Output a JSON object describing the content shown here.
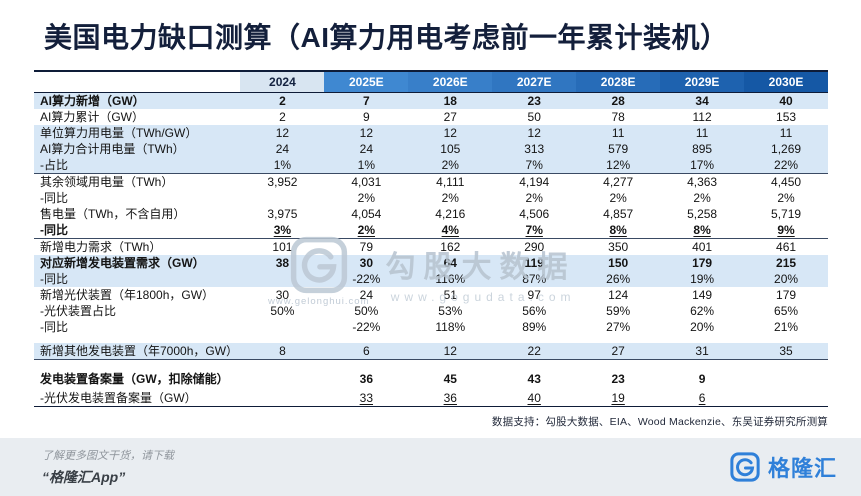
{
  "chart_data": {
    "type": "table",
    "title": "美国电力缺口测算（AI算力用电考虑前一年累计装机）",
    "columns": [
      "2024",
      "2025E",
      "2026E",
      "2027E",
      "2028E",
      "2029E",
      "2030E"
    ],
    "rows": [
      {
        "label": "AI算力新增（GW）",
        "values": [
          "2",
          "7",
          "18",
          "23",
          "28",
          "34",
          "40"
        ],
        "bold": true,
        "highlight": true
      },
      {
        "label": "AI算力累计（GW）",
        "values": [
          "2",
          "9",
          "27",
          "50",
          "78",
          "112",
          "153"
        ]
      },
      {
        "label": "单位算力用电量（TWh/GW）",
        "values": [
          "12",
          "12",
          "12",
          "12",
          "11",
          "11",
          "11"
        ],
        "highlight": true
      },
      {
        "label": "AI算力合计用电量（TWh）",
        "values": [
          "24",
          "24",
          "105",
          "313",
          "579",
          "895",
          "1,269"
        ],
        "highlight": true
      },
      {
        "label": "-占比",
        "values": [
          "1%",
          "1%",
          "2%",
          "7%",
          "12%",
          "17%",
          "22%"
        ],
        "highlight": true
      },
      {
        "label": "其余领域用电量（TWh）",
        "values": [
          "3,952",
          "4,031",
          "4,111",
          "4,194",
          "4,277",
          "4,363",
          "4,450"
        ],
        "sep_top": true
      },
      {
        "label": "-同比",
        "values": [
          "",
          "2%",
          "2%",
          "2%",
          "2%",
          "2%",
          "2%"
        ]
      },
      {
        "label": "售电量（TWh，不含自用）",
        "values": [
          "3,975",
          "4,054",
          "4,216",
          "4,506",
          "4,857",
          "5,258",
          "5,719"
        ]
      },
      {
        "label": "-同比",
        "values": [
          "3%",
          "2%",
          "4%",
          "7%",
          "8%",
          "8%",
          "9%"
        ],
        "bold": true,
        "underline": true
      },
      {
        "label": "新增电力需求（TWh）",
        "values": [
          "101",
          "79",
          "162",
          "290",
          "350",
          "401",
          "461"
        ],
        "sep_top": true
      },
      {
        "label": "对应新增发电装置需求（GW）",
        "values": [
          "38",
          "30",
          "64",
          "119",
          "150",
          "179",
          "215"
        ],
        "bold": true,
        "highlight": true
      },
      {
        "label": "-同比",
        "values": [
          "",
          "-22%",
          "116%",
          "87%",
          "26%",
          "19%",
          "20%"
        ],
        "highlight": true
      },
      {
        "label": "新增光伏装置（年1800h，GW）",
        "values": [
          "30",
          "24",
          "51",
          "97",
          "124",
          "149",
          "179"
        ]
      },
      {
        "label": "-光伏装置占比",
        "values": [
          "50%",
          "50%",
          "53%",
          "56%",
          "59%",
          "62%",
          "65%"
        ]
      },
      {
        "label": "-同比",
        "values": [
          "",
          "-22%",
          "118%",
          "89%",
          "27%",
          "20%",
          "21%"
        ]
      },
      {
        "label": "新增其他发电装置（年7000h，GW）",
        "values": [
          "8",
          "6",
          "12",
          "22",
          "27",
          "31",
          "35"
        ],
        "highlight": true,
        "gap_before": 8,
        "sep_bottom": true
      },
      {
        "label": "发电装置备案量（GW，扣除储能）",
        "values": [
          "",
          "36",
          "45",
          "43",
          "23",
          "9",
          ""
        ],
        "bold": true,
        "gap_before": 11
      },
      {
        "label": "-光伏发电装置备案量（GW）",
        "values": [
          "",
          "33",
          "36",
          "40",
          "19",
          "6",
          ""
        ],
        "underline": true,
        "gap_before": 3
      }
    ]
  },
  "source_note": "数据支持：勾股大数据、EIA、Wood Mackenzie、东吴证券研究所测算",
  "watermark": {
    "brand": "勾股大数据",
    "site1": "www.gelonghui.com",
    "site2": "www.gogudata.com"
  },
  "footer": {
    "promo_line1": "了解更多图文干货，请下载",
    "promo_line2": "“格隆汇App”",
    "brand_name": "格隆汇"
  },
  "colors": {
    "title_navy": "#131f3b",
    "brand_blue": "#2f80d9",
    "row_highlight": "#d7e7f6",
    "header_bg": [
      "#d8e5f1",
      "#3f88d1",
      "#387fc9",
      "#3076c1",
      "#276cb8",
      "#1e62af",
      "#1558a5"
    ],
    "header_fg": [
      "#132240",
      "#ffffff",
      "#ffffff",
      "#ffffff",
      "#ffffff",
      "#ffffff",
      "#ffffff"
    ]
  }
}
